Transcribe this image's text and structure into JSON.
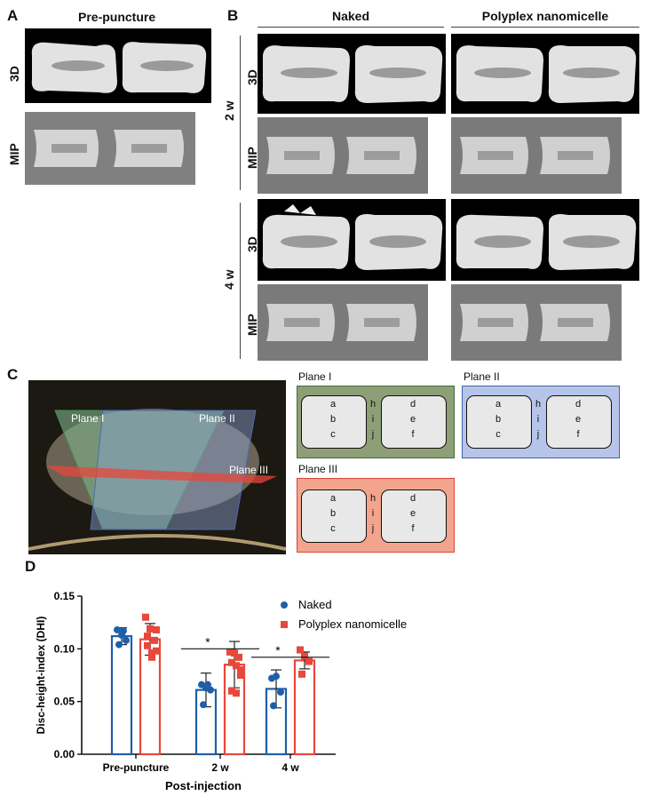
{
  "panel_a": {
    "letter": "A",
    "title": "Pre-puncture",
    "row_labels": [
      "3D",
      "MIP"
    ]
  },
  "panel_b": {
    "letter": "B",
    "columns": [
      "Naked",
      "Polyplex nanomicelle"
    ],
    "time_labels": [
      "2 w",
      "4 w"
    ],
    "row_labels": [
      "3D",
      "MIP",
      "3D",
      "MIP"
    ]
  },
  "panel_c": {
    "letter": "C",
    "overlay_labels": [
      "Plane I",
      "Plane II",
      "Plane III"
    ],
    "planes": [
      {
        "title": "Plane I",
        "color": "#8e9f77",
        "border": "#3f6f3a"
      },
      {
        "title": "Plane II",
        "color": "#b6c4ea",
        "border": "#3f63a8"
      },
      {
        "title": "Plane III",
        "color": "#f2a48c",
        "border": "#d9443c"
      }
    ],
    "left_labels": [
      "a",
      "b",
      "c"
    ],
    "mid_labels": [
      "h",
      "i",
      "j"
    ],
    "right_labels": [
      "d",
      "e",
      "f"
    ]
  },
  "panel_d": {
    "letter": "D",
    "significance": [
      "*",
      "*"
    ]
  },
  "chart_data": {
    "type": "bar",
    "title": "",
    "xlabel": "Post-injection",
    "ylabel": "Disc-height-index (DHI)",
    "categories": [
      "Pre-puncture",
      "2 w",
      "4 w"
    ],
    "ylim": [
      0,
      0.15
    ],
    "yticks": [
      "0.00",
      "0.05",
      "0.10",
      "0.15"
    ],
    "legend_position": "top-right",
    "series": [
      {
        "name": "Naked",
        "color": "#1f5fa8",
        "marker": "circle",
        "means": [
          0.112,
          0.061,
          0.062
        ],
        "sd": [
          0.008,
          0.016,
          0.018
        ],
        "points": [
          [
            0.118,
            0.113,
            0.108,
            0.104,
            0.117
          ],
          [
            0.066,
            0.063,
            0.061,
            0.047,
            0.066
          ],
          [
            0.072,
            0.074,
            0.059,
            0.046
          ]
        ]
      },
      {
        "name": "Polyplex nanomicelle",
        "color": "#e8473b",
        "marker": "square",
        "means": [
          0.109,
          0.085,
          0.089
        ],
        "sd": [
          0.015,
          0.022,
          0.008
        ],
        "points": [
          [
            0.13,
            0.119,
            0.108,
            0.103,
            0.092,
            0.118,
            0.112,
            0.096,
            0.098
          ],
          [
            0.097,
            0.096,
            0.092,
            0.087,
            0.084,
            0.075,
            0.06,
            0.058,
            0.08
          ],
          [
            0.099,
            0.093,
            0.088,
            0.076
          ]
        ]
      }
    ]
  }
}
